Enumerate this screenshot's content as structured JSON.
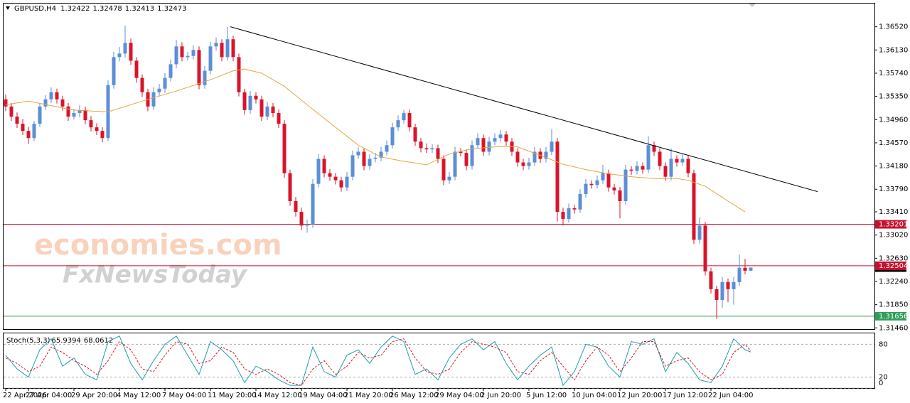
{
  "chart_data": {
    "type": "candlestick",
    "symbol": "GBPUSD,H4",
    "up_color": "#5b8fd6",
    "down_color": "#d9142a",
    "ylim": [
      1.3144,
      1.3691
    ],
    "yticks": [
      {
        "value": 1.3652,
        "label": "1.36520"
      },
      {
        "value": 1.3613,
        "label": "1.36130"
      },
      {
        "value": 1.3574,
        "label": "1.35740"
      },
      {
        "value": 1.3535,
        "label": "1.35350"
      },
      {
        "value": 1.3496,
        "label": "1.34960"
      },
      {
        "value": 1.3457,
        "label": "1.34570"
      },
      {
        "value": 1.3418,
        "label": "1.34180"
      },
      {
        "value": 1.3379,
        "label": "1.33790"
      },
      {
        "value": 1.3341,
        "label": "1.33410"
      },
      {
        "value": 1.3302,
        "label": "1.33020"
      },
      {
        "value": 1.3263,
        "label": "1.32630"
      },
      {
        "value": 1.3224,
        "label": "1.32240"
      },
      {
        "value": 1.3185,
        "label": "1.31850"
      },
      {
        "value": 1.3146,
        "label": "1.31460"
      }
    ],
    "categories": [
      "22 Apr 2026",
      null,
      null,
      null,
      "27 Apr 04:00",
      null,
      null,
      null,
      null,
      null,
      null,
      null,
      "29 Apr 20:00",
      null,
      null,
      null,
      null,
      null,
      null,
      null,
      "4 May 12:00",
      null,
      null,
      null,
      null,
      null,
      null,
      null,
      "7 May 04:00",
      null,
      null,
      null,
      null,
      null,
      null,
      null,
      "11 May 20:00",
      null,
      null,
      null,
      null,
      null,
      null,
      null,
      "14 May 12:00",
      null,
      null,
      null,
      null,
      null,
      null,
      null,
      "19 May 04:00",
      null,
      null,
      null,
      null,
      null,
      null,
      null,
      "21 May 20:00",
      null,
      null,
      null,
      null,
      null,
      null,
      null,
      "26 May 12:00",
      null,
      null,
      null,
      null,
      null,
      null,
      null,
      "29 May 04:00",
      null,
      null,
      null,
      null,
      null,
      null,
      null,
      "2 Jun 20:00",
      null,
      null,
      null,
      null,
      null,
      null,
      null,
      "5 Jun 12:00",
      null,
      null,
      null,
      null,
      null,
      null,
      null,
      "10 Jun 04:00",
      null,
      null,
      null,
      null,
      null,
      null,
      null,
      "12 Jun 20:00",
      null,
      null,
      null,
      null,
      null,
      null,
      null,
      "17 Jun 12:00",
      null,
      null,
      null,
      null,
      null,
      null,
      null,
      "22 Jun 04:00",
      null,
      null,
      null,
      null,
      null,
      null,
      null
    ],
    "candles": [
      [
        1.353,
        1.3538,
        1.351,
        1.3518
      ],
      [
        1.3518,
        1.3524,
        1.3494,
        1.3501
      ],
      [
        1.3501,
        1.3508,
        1.3482,
        1.3489
      ],
      [
        1.3489,
        1.3497,
        1.347,
        1.3477
      ],
      [
        1.3477,
        1.3484,
        1.3455,
        1.3465
      ],
      [
        1.3465,
        1.3494,
        1.346,
        1.3489
      ],
      [
        1.3489,
        1.3524,
        1.3484,
        1.3518
      ],
      [
        1.3518,
        1.3537,
        1.3512,
        1.353
      ],
      [
        1.353,
        1.355,
        1.3524,
        1.3542
      ],
      [
        1.3542,
        1.3548,
        1.3523,
        1.353
      ],
      [
        1.353,
        1.3536,
        1.3511,
        1.3518
      ],
      [
        1.3518,
        1.3524,
        1.3494,
        1.3501
      ],
      [
        1.3501,
        1.3514,
        1.3496,
        1.3507
      ],
      [
        1.3507,
        1.352,
        1.35,
        1.3512
      ],
      [
        1.3512,
        1.3518,
        1.3488,
        1.3495
      ],
      [
        1.3495,
        1.3502,
        1.3476,
        1.3483
      ],
      [
        1.3483,
        1.349,
        1.347,
        1.3477
      ],
      [
        1.3477,
        1.3483,
        1.3458,
        1.3465
      ],
      [
        1.3465,
        1.3562,
        1.346,
        1.3554
      ],
      [
        1.3554,
        1.361,
        1.3548,
        1.3601
      ],
      [
        1.3601,
        1.3618,
        1.3594,
        1.3607
      ],
      [
        1.3607,
        1.3654,
        1.36,
        1.3625
      ],
      [
        1.3625,
        1.3632,
        1.3588,
        1.3595
      ],
      [
        1.3595,
        1.3601,
        1.3558,
        1.3566
      ],
      [
        1.3566,
        1.3572,
        1.3534,
        1.3542
      ],
      [
        1.3542,
        1.3548,
        1.351,
        1.3518
      ],
      [
        1.3518,
        1.355,
        1.3512,
        1.3542
      ],
      [
        1.3542,
        1.3556,
        1.3536,
        1.3548
      ],
      [
        1.3548,
        1.3574,
        1.3541,
        1.3566
      ],
      [
        1.3566,
        1.3597,
        1.356,
        1.3589
      ],
      [
        1.3589,
        1.363,
        1.3582,
        1.3619
      ],
      [
        1.3619,
        1.3626,
        1.3594,
        1.3601
      ],
      [
        1.3601,
        1.361,
        1.3595,
        1.3603
      ],
      [
        1.3603,
        1.3621,
        1.3597,
        1.3613
      ],
      [
        1.3613,
        1.3619,
        1.3547,
        1.3554
      ],
      [
        1.3554,
        1.3586,
        1.3548,
        1.3578
      ],
      [
        1.3578,
        1.3627,
        1.3572,
        1.3619
      ],
      [
        1.3619,
        1.3634,
        1.3612,
        1.3625
      ],
      [
        1.3625,
        1.3631,
        1.3594,
        1.3601
      ],
      [
        1.3601,
        1.3652,
        1.3595,
        1.3631
      ],
      [
        1.3631,
        1.3637,
        1.3594,
        1.3601
      ],
      [
        1.3601,
        1.3607,
        1.3535,
        1.3542
      ],
      [
        1.3542,
        1.3548,
        1.3504,
        1.3512
      ],
      [
        1.3512,
        1.3544,
        1.3506,
        1.3536
      ],
      [
        1.3536,
        1.3542,
        1.3523,
        1.353
      ],
      [
        1.353,
        1.3536,
        1.3494,
        1.3501
      ],
      [
        1.3501,
        1.3526,
        1.3495,
        1.3518
      ],
      [
        1.3518,
        1.3524,
        1.35,
        1.3507
      ],
      [
        1.3507,
        1.3513,
        1.3482,
        1.3489
      ],
      [
        1.3489,
        1.3495,
        1.3398,
        1.3406
      ],
      [
        1.3406,
        1.3412,
        1.3351,
        1.3359
      ],
      [
        1.3359,
        1.3366,
        1.3333,
        1.3341
      ],
      [
        1.3341,
        1.3348,
        1.331,
        1.3318
      ],
      [
        1.3318,
        1.3328,
        1.3306,
        1.332
      ],
      [
        1.332,
        1.3396,
        1.3314,
        1.3388
      ],
      [
        1.3388,
        1.3438,
        1.3382,
        1.343
      ],
      [
        1.343,
        1.3436,
        1.3399,
        1.3406
      ],
      [
        1.3406,
        1.3413,
        1.3393,
        1.34
      ],
      [
        1.34,
        1.3406,
        1.3387,
        1.3394
      ],
      [
        1.3394,
        1.34,
        1.3375,
        1.3382
      ],
      [
        1.3382,
        1.3408,
        1.3376,
        1.34
      ],
      [
        1.34,
        1.3444,
        1.3394,
        1.3436
      ],
      [
        1.3436,
        1.345,
        1.343,
        1.3442
      ],
      [
        1.3442,
        1.3448,
        1.3411,
        1.3418
      ],
      [
        1.3418,
        1.3438,
        1.3412,
        1.343
      ],
      [
        1.343,
        1.344,
        1.3424,
        1.3432
      ],
      [
        1.3432,
        1.345,
        1.3426,
        1.3442
      ],
      [
        1.3442,
        1.3461,
        1.3436,
        1.3453
      ],
      [
        1.3453,
        1.3491,
        1.3447,
        1.3483
      ],
      [
        1.3483,
        1.3503,
        1.3477,
        1.3495
      ],
      [
        1.3495,
        1.3512,
        1.3489,
        1.3507
      ],
      [
        1.3507,
        1.3513,
        1.3476,
        1.3483
      ],
      [
        1.3483,
        1.3489,
        1.3452,
        1.3459
      ],
      [
        1.3459,
        1.3465,
        1.3441,
        1.3448
      ],
      [
        1.3448,
        1.3456,
        1.344,
        1.3446
      ],
      [
        1.3446,
        1.3455,
        1.344,
        1.3448
      ],
      [
        1.3448,
        1.3454,
        1.3423,
        1.343
      ],
      [
        1.343,
        1.3436,
        1.3386,
        1.3394
      ],
      [
        1.3394,
        1.3408,
        1.3388,
        1.34
      ],
      [
        1.34,
        1.345,
        1.3394,
        1.3442
      ],
      [
        1.3442,
        1.3448,
        1.3434,
        1.344
      ],
      [
        1.344,
        1.3446,
        1.3411,
        1.3418
      ],
      [
        1.3418,
        1.3461,
        1.3412,
        1.3453
      ],
      [
        1.3453,
        1.3473,
        1.3447,
        1.3465
      ],
      [
        1.3465,
        1.3471,
        1.3435,
        1.3442
      ],
      [
        1.3442,
        1.3467,
        1.3436,
        1.3459
      ],
      [
        1.3459,
        1.3473,
        1.3453,
        1.3465
      ],
      [
        1.3465,
        1.3479,
        1.3459,
        1.3471
      ],
      [
        1.3471,
        1.3477,
        1.3452,
        1.3459
      ],
      [
        1.3459,
        1.3465,
        1.3435,
        1.3442
      ],
      [
        1.3442,
        1.3448,
        1.3417,
        1.3424
      ],
      [
        1.3424,
        1.343,
        1.3411,
        1.3418
      ],
      [
        1.3418,
        1.3432,
        1.3412,
        1.3424
      ],
      [
        1.3424,
        1.345,
        1.3418,
        1.3442
      ],
      [
        1.3442,
        1.3448,
        1.3423,
        1.343
      ],
      [
        1.343,
        1.345,
        1.3424,
        1.3442
      ],
      [
        1.3442,
        1.348,
        1.3436,
        1.3459
      ],
      [
        1.3459,
        1.3465,
        1.3325,
        1.3341
      ],
      [
        1.3341,
        1.3348,
        1.3318,
        1.3329
      ],
      [
        1.3329,
        1.3355,
        1.3323,
        1.3347
      ],
      [
        1.3347,
        1.3353,
        1.3338,
        1.3345
      ],
      [
        1.3345,
        1.3379,
        1.3339,
        1.3371
      ],
      [
        1.3371,
        1.3396,
        1.3365,
        1.3388
      ],
      [
        1.3388,
        1.3394,
        1.338,
        1.3386
      ],
      [
        1.3386,
        1.3402,
        1.338,
        1.3394
      ],
      [
        1.3394,
        1.342,
        1.3388,
        1.3406
      ],
      [
        1.3406,
        1.3412,
        1.3375,
        1.3382
      ],
      [
        1.3382,
        1.3388,
        1.337,
        1.3377
      ],
      [
        1.3377,
        1.3383,
        1.333,
        1.3359
      ],
      [
        1.3359,
        1.342,
        1.3353,
        1.3412
      ],
      [
        1.3412,
        1.3418,
        1.3403,
        1.341
      ],
      [
        1.341,
        1.3426,
        1.3404,
        1.3418
      ],
      [
        1.3418,
        1.3424,
        1.3405,
        1.3412
      ],
      [
        1.3412,
        1.3468,
        1.3406,
        1.3453
      ],
      [
        1.3453,
        1.3459,
        1.3435,
        1.3442
      ],
      [
        1.3442,
        1.3448,
        1.3411,
        1.3418
      ],
      [
        1.3418,
        1.3424,
        1.3393,
        1.34
      ],
      [
        1.34,
        1.3448,
        1.3394,
        1.343
      ],
      [
        1.343,
        1.3436,
        1.3417,
        1.3424
      ],
      [
        1.3424,
        1.3438,
        1.3418,
        1.343
      ],
      [
        1.343,
        1.3436,
        1.3399,
        1.3406
      ],
      [
        1.3406,
        1.3412,
        1.3287,
        1.3294
      ],
      [
        1.3294,
        1.3332,
        1.3288,
        1.3318
      ],
      [
        1.3318,
        1.3324,
        1.3234,
        1.3241
      ],
      [
        1.3241,
        1.3247,
        1.3204,
        1.3211
      ],
      [
        1.3211,
        1.3217,
        1.3161,
        1.3193
      ],
      [
        1.3193,
        1.3231,
        1.318,
        1.3223
      ],
      [
        1.3223,
        1.3229,
        1.3189,
        1.3211
      ],
      [
        1.3211,
        1.3231,
        1.3185,
        1.3223
      ],
      [
        1.3223,
        1.3269,
        1.3217,
        1.3247
      ],
      [
        1.3247,
        1.3262,
        1.3236,
        1.3242
      ],
      [
        1.32422,
        1.32478,
        1.32413,
        1.32473
      ]
    ],
    "ma": {
      "color": "#e8a33d",
      "x": [
        0,
        4,
        12,
        18,
        24,
        30,
        36,
        40,
        42,
        45,
        49,
        53,
        58,
        62,
        66,
        70,
        74,
        78,
        82,
        87,
        90,
        94,
        98,
        102,
        106,
        110,
        114,
        118,
        120,
        123,
        127,
        130
      ],
      "values": [
        1.3521,
        1.3527,
        1.3512,
        1.3509,
        1.3527,
        1.3544,
        1.3563,
        1.3578,
        1.3581,
        1.3574,
        1.3552,
        1.3521,
        1.3483,
        1.3453,
        1.3433,
        1.3426,
        1.342,
        1.3438,
        1.3447,
        1.3451,
        1.345,
        1.3436,
        1.3421,
        1.3412,
        1.3405,
        1.34,
        1.3397,
        1.3397,
        1.3394,
        1.3384,
        1.3359,
        1.3341
      ]
    },
    "trendline": {
      "color": "#000000",
      "x": [
        39.5,
        142.75
      ],
      "values": [
        1.3652,
        1.3375
      ]
    },
    "levels": [
      {
        "value": 1.33201,
        "color": "#c8102e"
      },
      {
        "value": 1.32504,
        "color": "#c8102e"
      },
      {
        "value": 1.31656,
        "color": "#2e9e5a"
      }
    ],
    "stoch": {
      "name": "Stoch(5,3,3)",
      "ylim": [
        0,
        100
      ],
      "yticks": [
        0,
        20,
        80
      ],
      "x": [
        0,
        2,
        4,
        6,
        8,
        10,
        12,
        14,
        16,
        18,
        20,
        22,
        24,
        26,
        28,
        30,
        32,
        34,
        36,
        38,
        40,
        42,
        44,
        46,
        48,
        50,
        52,
        54,
        56,
        58,
        60,
        62,
        64,
        66,
        68,
        70,
        72,
        74,
        76,
        78,
        80,
        82,
        84,
        86,
        88,
        90,
        92,
        94,
        96,
        98,
        100,
        102,
        104,
        106,
        108,
        110,
        112,
        114,
        116,
        118,
        120,
        122,
        124,
        126,
        128,
        130,
        131
      ],
      "series": [
        {
          "color": "#1a9fa8",
          "values": [
            60,
            35,
            20,
            70,
            90,
            40,
            55,
            25,
            15,
            85,
            95,
            45,
            15,
            50,
            80,
            95,
            60,
            25,
            85,
            70,
            50,
            10,
            40,
            30,
            15,
            5,
            5,
            75,
            30,
            20,
            60,
            70,
            45,
            75,
            95,
            85,
            25,
            35,
            15,
            55,
            80,
            90,
            70,
            85,
            45,
            15,
            40,
            60,
            75,
            5,
            30,
            80,
            75,
            40,
            20,
            85,
            80,
            90,
            30,
            65,
            45,
            15,
            10,
            40,
            90,
            70,
            65.9394
          ]
        },
        {
          "color": "#d9142a",
          "values": [
            55,
            45,
            30,
            40,
            75,
            65,
            50,
            40,
            25,
            50,
            85,
            70,
            35,
            30,
            60,
            85,
            80,
            45,
            50,
            75,
            65,
            35,
            25,
            35,
            25,
            10,
            5,
            35,
            50,
            25,
            40,
            65,
            55,
            60,
            85,
            90,
            55,
            30,
            25,
            35,
            65,
            85,
            80,
            75,
            65,
            30,
            25,
            50,
            65,
            40,
            15,
            50,
            75,
            60,
            30,
            55,
            85,
            85,
            40,
            50,
            55,
            30,
            15,
            25,
            65,
            80,
            68.0612
          ]
        }
      ]
    },
    "watermark": [
      "economies.com",
      "FxNewsToday"
    ]
  }
}
